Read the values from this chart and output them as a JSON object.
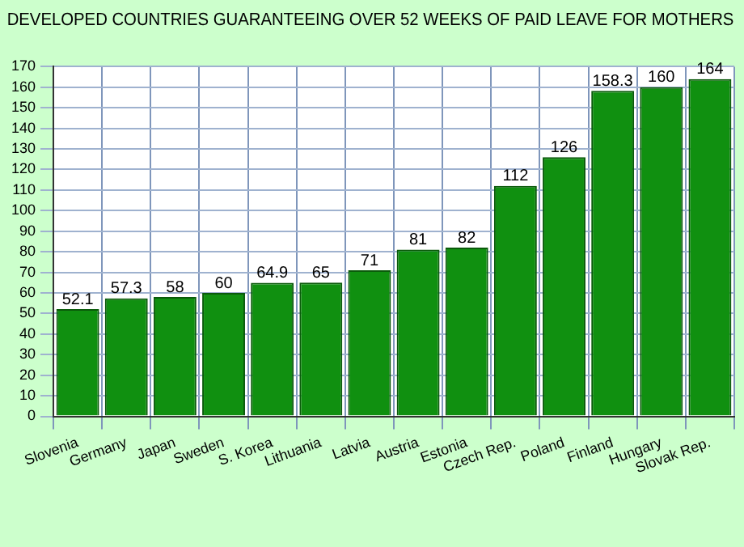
{
  "chart_data": {
    "type": "bar",
    "title": "DEVELOPED COUNTRIES GUARANTEEING OVER 52 WEEKS OF PAID LEAVE FOR MOTHERS",
    "categories": [
      "Slovenia",
      "Germany",
      "Japan",
      "Sweden",
      "S. Korea",
      "Lithuania",
      "Latvia",
      "Austria",
      "Estonia",
      "Czech Rep.",
      "Poland",
      "Finland",
      "Hungary",
      "Slovak Rep."
    ],
    "values": [
      52.1,
      57.3,
      58,
      60,
      64.9,
      65,
      71,
      81,
      82,
      112,
      126,
      158.3,
      160,
      164
    ],
    "color": "#109010",
    "ylim": [
      0,
      170
    ],
    "yticks": [
      0,
      10,
      20,
      30,
      40,
      50,
      60,
      70,
      80,
      90,
      100,
      110,
      120,
      130,
      140,
      150,
      160,
      170
    ],
    "grid": true,
    "data_labels": true
  }
}
